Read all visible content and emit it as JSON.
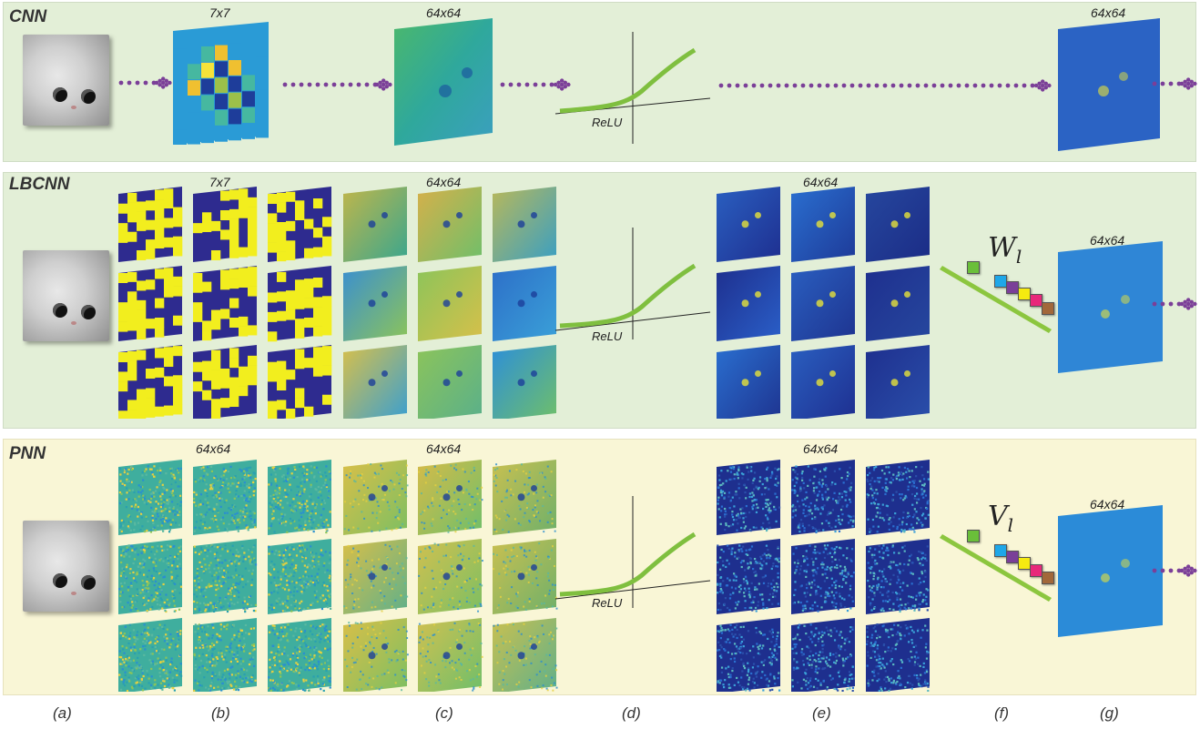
{
  "panels": [
    {
      "title": "CNN",
      "color": "#e3efd7"
    },
    {
      "title": "LBCNN",
      "color": "#e3efd7"
    },
    {
      "title": "PNN",
      "color": "#f9f6d6"
    }
  ],
  "size_labels": {
    "cnn_filter": "7x7",
    "cnn_response": "64x64",
    "cnn_output": "64x64",
    "lbcnn_filter": "7x7",
    "lbcnn_response": "64x64",
    "lbcnn_relu_out": "64x64",
    "lbcnn_output": "64x64",
    "pnn_filter": "64x64",
    "pnn_response": "64x64",
    "pnn_relu_out": "64x64",
    "pnn_output": "64x64"
  },
  "relu_label": "ReLU",
  "weights": {
    "lbcnn": "W",
    "pnn": "V",
    "subscript": "l"
  },
  "sublabels": [
    "(a)",
    "(b)",
    "(c)",
    "(d)",
    "(e)",
    "(f)",
    "(g)"
  ],
  "colors": {
    "arrow": "#7b3f98",
    "relu_curve": "#7fbf3f",
    "binary_a": "#f2ee1e",
    "binary_b": "#2e2b8f",
    "weight_squares": [
      "#6abf3a",
      "#1ea7e8",
      "#7a3f98",
      "#f5ea10",
      "#e8287a",
      "#a2683a"
    ]
  }
}
